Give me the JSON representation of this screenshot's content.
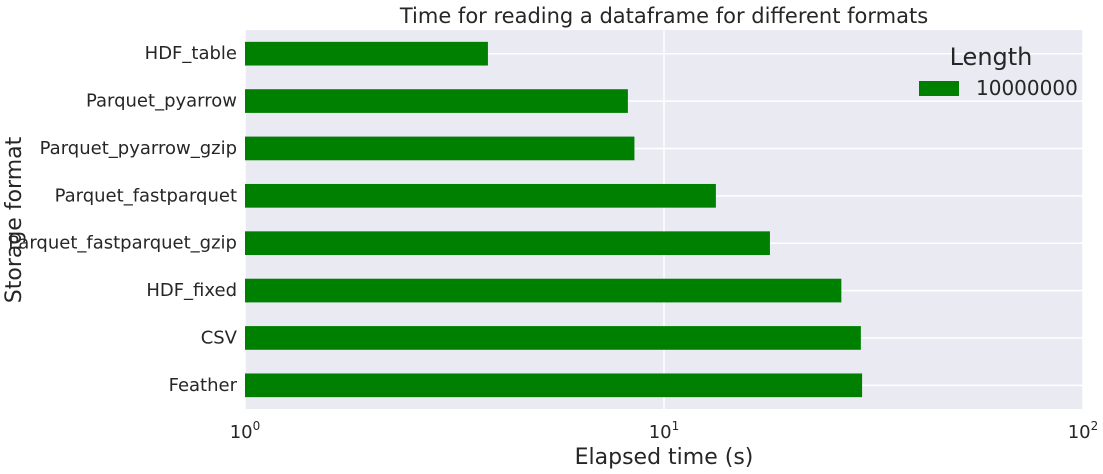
{
  "chart_data": {
    "type": "bar",
    "orientation": "horizontal",
    "title": "Time for reading a dataframe for different formats",
    "xlabel": "Elapsed time (s)",
    "ylabel": "Storage format",
    "xscale": "log",
    "xlim": [
      1,
      100
    ],
    "x_ticks": [
      {
        "value": 1,
        "base": "10",
        "exp": "0"
      },
      {
        "value": 10,
        "base": "10",
        "exp": "1"
      },
      {
        "value": 100,
        "base": "10",
        "exp": "2"
      }
    ],
    "categories": [
      "HDF_table",
      "Parquet_pyarrow",
      "Parquet_pyarrow_gzip",
      "Parquet_fastparquet",
      "Parquet_fastparquet_gzip",
      "HDF_fixed",
      "CSV",
      "Feather"
    ],
    "series": [
      {
        "name": "10000000",
        "color": "#008000",
        "values": [
          3.8,
          8.2,
          8.5,
          13.3,
          17.9,
          26.5,
          29.5,
          29.7
        ]
      }
    ],
    "legend": {
      "title": "Length",
      "position": "top-right"
    },
    "grid": true,
    "background_color": "#EAEAF2"
  }
}
